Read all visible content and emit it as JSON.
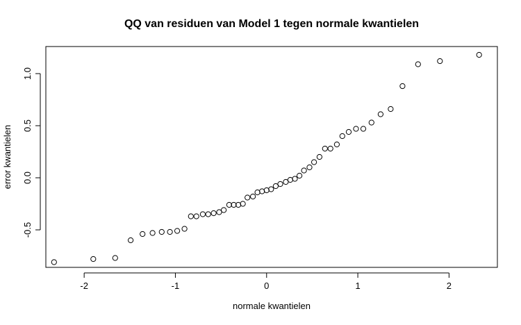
{
  "chart_data": {
    "type": "scatter",
    "title": "QQ van residuen van Model 1 tegen normale kwantielen",
    "xlabel": "normale kwantielen",
    "ylabel": "error kwantielen",
    "xlim": [
      -2.42,
      2.53
    ],
    "ylim": [
      -0.86,
      1.26
    ],
    "xticks": [
      -2,
      -1,
      0,
      1,
      2
    ],
    "xtick_labels": [
      "-2",
      "-1",
      "0",
      "1",
      "2"
    ],
    "yticks": [
      -0.5,
      0.0,
      0.5,
      1.0
    ],
    "ytick_labels": [
      "-0.5",
      "0.0",
      "0.5",
      "1.0"
    ],
    "grid": false,
    "legend": "none",
    "points": [
      {
        "x": -2.33,
        "y": -0.81
      },
      {
        "x": -1.9,
        "y": -0.78
      },
      {
        "x": -1.66,
        "y": -0.77
      },
      {
        "x": -1.49,
        "y": -0.6
      },
      {
        "x": -1.36,
        "y": -0.54
      },
      {
        "x": -1.25,
        "y": -0.53
      },
      {
        "x": -1.15,
        "y": -0.52
      },
      {
        "x": -1.06,
        "y": -0.52
      },
      {
        "x": -0.98,
        "y": -0.51
      },
      {
        "x": -0.9,
        "y": -0.49
      },
      {
        "x": -0.83,
        "y": -0.37
      },
      {
        "x": -0.77,
        "y": -0.37
      },
      {
        "x": -0.7,
        "y": -0.35
      },
      {
        "x": -0.64,
        "y": -0.35
      },
      {
        "x": -0.58,
        "y": -0.34
      },
      {
        "x": -0.52,
        "y": -0.33
      },
      {
        "x": -0.47,
        "y": -0.31
      },
      {
        "x": -0.41,
        "y": -0.26
      },
      {
        "x": -0.36,
        "y": -0.26
      },
      {
        "x": -0.31,
        "y": -0.26
      },
      {
        "x": -0.26,
        "y": -0.25
      },
      {
        "x": -0.21,
        "y": -0.19
      },
      {
        "x": -0.15,
        "y": -0.18
      },
      {
        "x": -0.1,
        "y": -0.14
      },
      {
        "x": -0.05,
        "y": -0.13
      },
      {
        "x": 0.0,
        "y": -0.12
      },
      {
        "x": 0.05,
        "y": -0.11
      },
      {
        "x": 0.1,
        "y": -0.08
      },
      {
        "x": 0.15,
        "y": -0.06
      },
      {
        "x": 0.21,
        "y": -0.04
      },
      {
        "x": 0.26,
        "y": -0.02
      },
      {
        "x": 0.31,
        "y": -0.01
      },
      {
        "x": 0.36,
        "y": 0.02
      },
      {
        "x": 0.41,
        "y": 0.07
      },
      {
        "x": 0.47,
        "y": 0.1
      },
      {
        "x": 0.52,
        "y": 0.15
      },
      {
        "x": 0.58,
        "y": 0.2
      },
      {
        "x": 0.64,
        "y": 0.28
      },
      {
        "x": 0.7,
        "y": 0.28
      },
      {
        "x": 0.77,
        "y": 0.32
      },
      {
        "x": 0.83,
        "y": 0.4
      },
      {
        "x": 0.9,
        "y": 0.44
      },
      {
        "x": 0.98,
        "y": 0.47
      },
      {
        "x": 1.06,
        "y": 0.47
      },
      {
        "x": 1.15,
        "y": 0.53
      },
      {
        "x": 1.25,
        "y": 0.61
      },
      {
        "x": 1.36,
        "y": 0.66
      },
      {
        "x": 1.49,
        "y": 0.88
      },
      {
        "x": 1.66,
        "y": 1.09
      },
      {
        "x": 1.9,
        "y": 1.12
      },
      {
        "x": 2.33,
        "y": 1.18
      }
    ]
  }
}
